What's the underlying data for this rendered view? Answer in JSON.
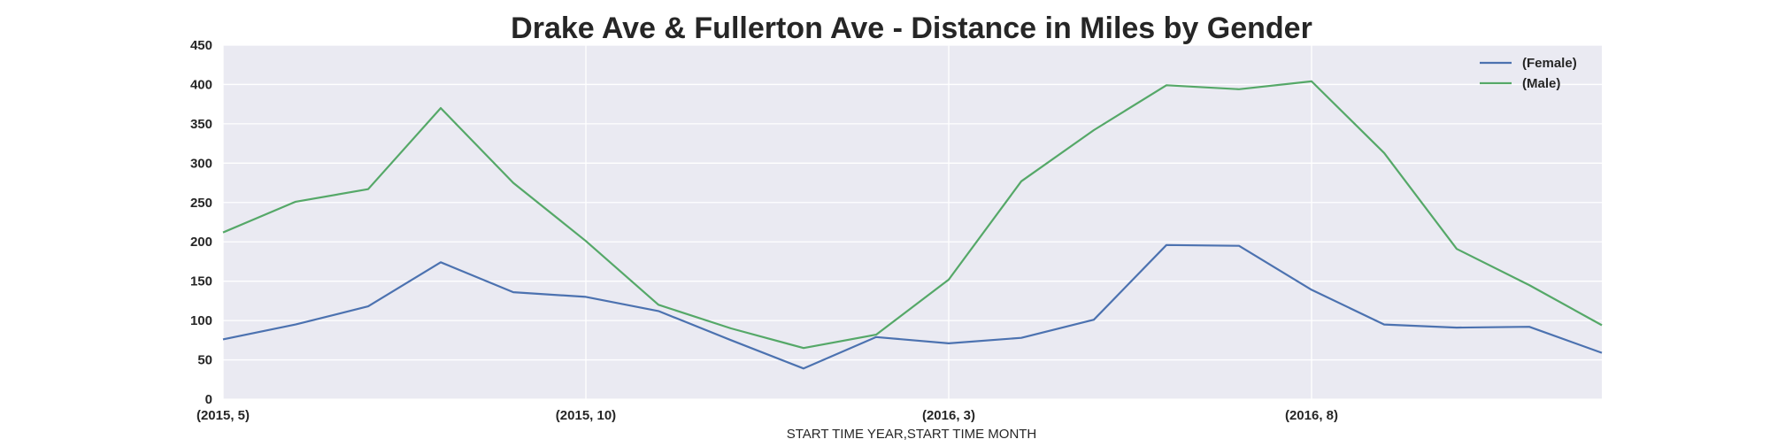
{
  "chart_data": {
    "type": "line",
    "title": "Drake Ave & Fullerton Ave - Distance in Miles by Gender",
    "xlabel": "START TIME YEAR,START TIME MONTH",
    "ylabel": "",
    "x": [
      "(2015, 5)",
      "(2015, 6)",
      "(2015, 7)",
      "(2015, 8)",
      "(2015, 9)",
      "(2015, 10)",
      "(2015, 11)",
      "(2015, 12)",
      "(2016, 1)",
      "(2016, 2)",
      "(2016, 3)",
      "(2016, 4)",
      "(2016, 5)",
      "(2016, 6)",
      "(2016, 7)",
      "(2016, 8)",
      "(2016, 9)",
      "(2016, 10)",
      "(2016, 11)",
      "(2016, 12)"
    ],
    "x_tick_labels": [
      "(2015, 5)",
      "(2015, 10)",
      "(2016, 3)",
      "(2016, 8)"
    ],
    "ylim": [
      0,
      450
    ],
    "y_ticks": [
      0,
      50,
      100,
      150,
      200,
      250,
      300,
      350,
      400,
      450
    ],
    "grid": true,
    "legend_position": "top-right",
    "series": [
      {
        "name": "(Female)",
        "color": "#4c72b0",
        "values": [
          76,
          95,
          118,
          174,
          136,
          130,
          112,
          75,
          39,
          79,
          71,
          78,
          101,
          196,
          195,
          139,
          95,
          91,
          92,
          59
        ]
      },
      {
        "name": "(Male)",
        "color": "#55a868",
        "values": [
          212,
          251,
          267,
          370,
          275,
          201,
          120,
          90,
          65,
          82,
          152,
          277,
          342,
          399,
          394,
          404,
          313,
          191,
          145,
          94
        ]
      }
    ],
    "background_color": "#eaeaf2",
    "grid_color": "#ffffff"
  }
}
